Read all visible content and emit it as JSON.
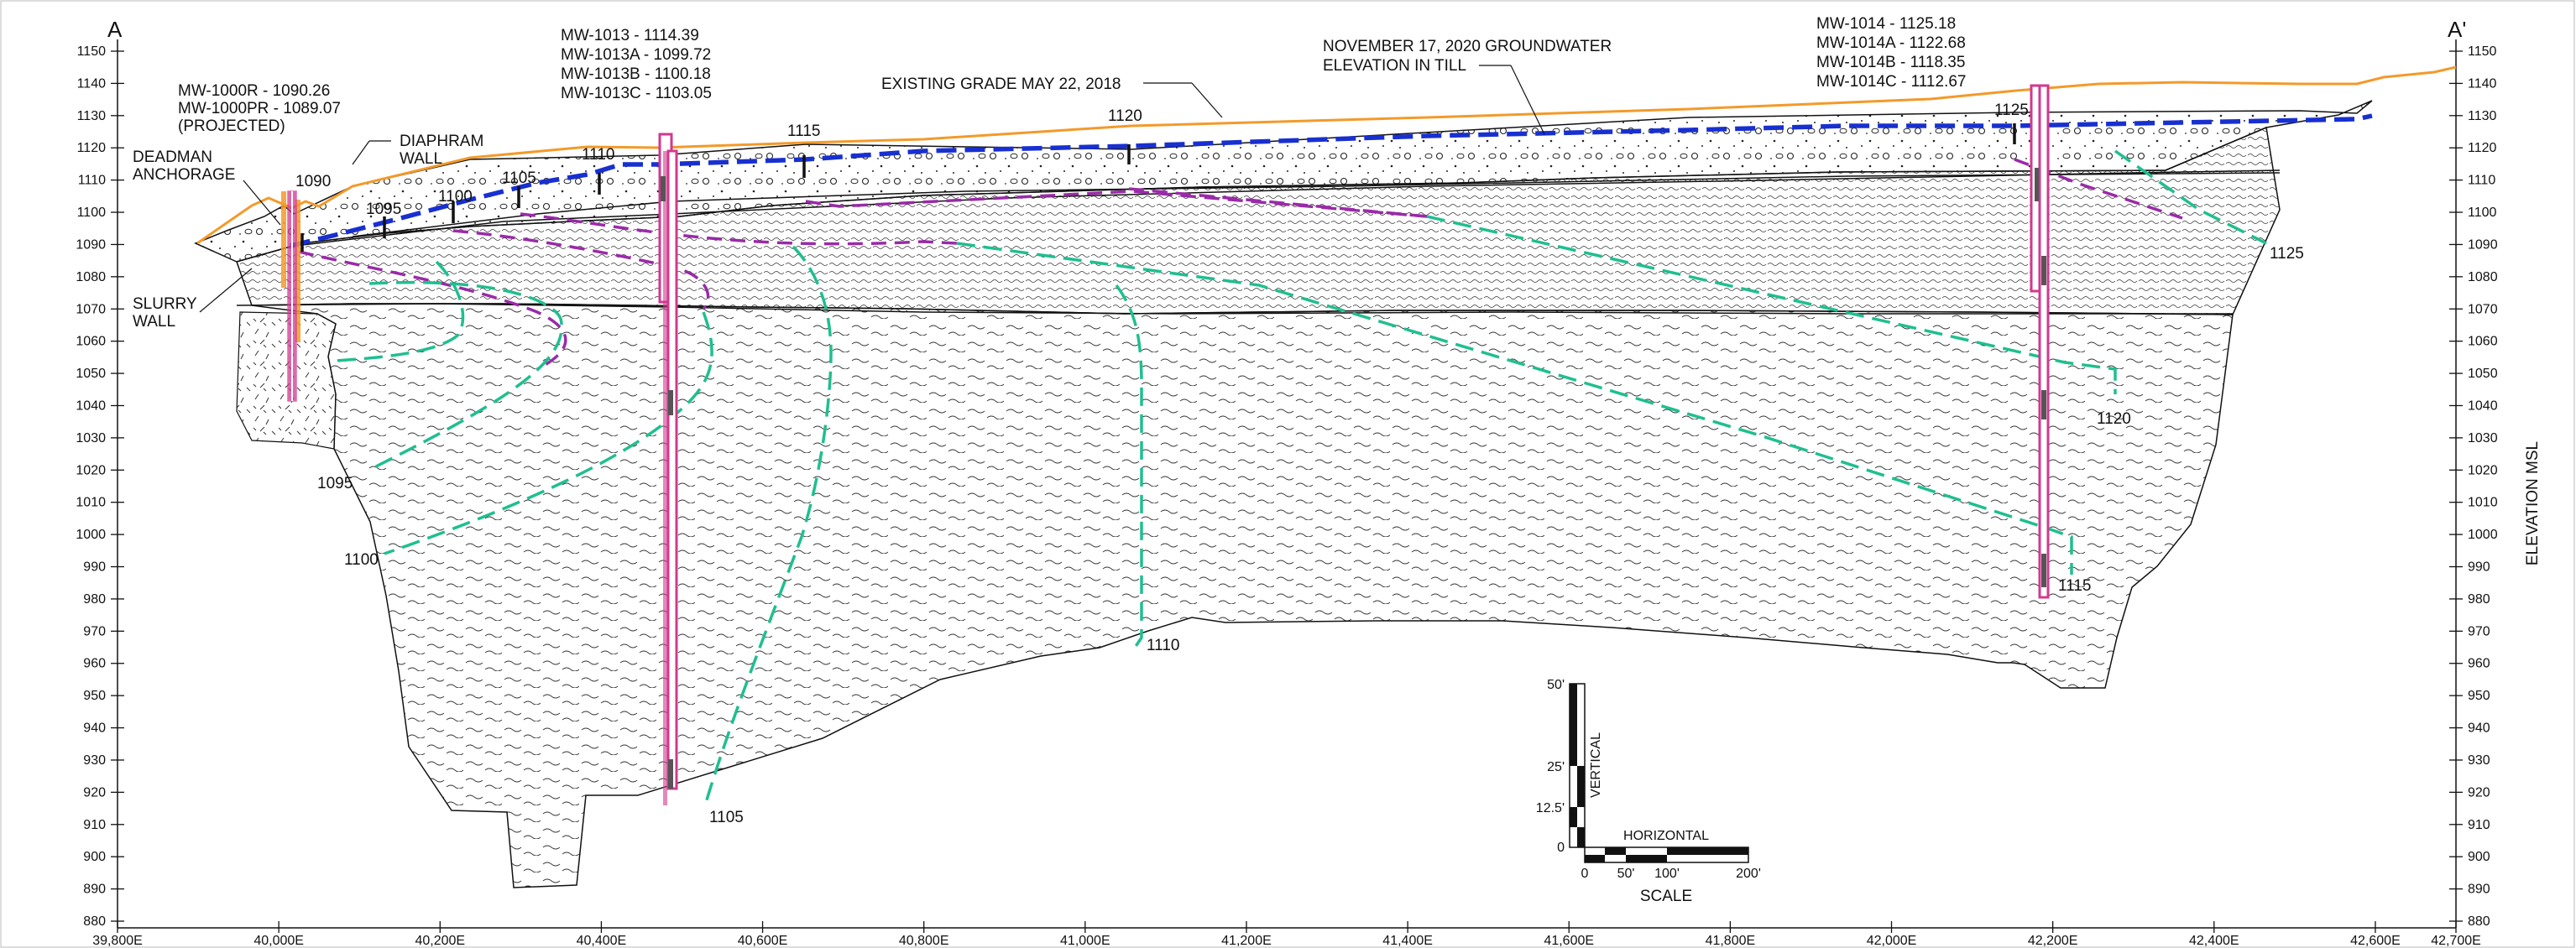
{
  "section": {
    "start_label": "A",
    "end_label": "A'",
    "y_axis_title": "ELEVATION MSL"
  },
  "axes": {
    "elev_ticks": [
      880,
      890,
      900,
      910,
      920,
      930,
      940,
      950,
      960,
      970,
      980,
      990,
      1000,
      1010,
      1020,
      1030,
      1040,
      1050,
      1060,
      1070,
      1080,
      1090,
      1100,
      1110,
      1120,
      1130,
      1140,
      1150
    ],
    "x_ticks": [
      "39,800E",
      "40,000E",
      "40,200E",
      "40,400E",
      "40,600E",
      "40,800E",
      "41,000E",
      "41,200E",
      "41,400E",
      "41,600E",
      "41,800E",
      "42,000E",
      "42,200E",
      "42,400E",
      "42,600E",
      "42,700E"
    ]
  },
  "annotations": {
    "mw1000": [
      "MW-1000R - 1090.26",
      "MW-1000PR - 1089.07",
      "(PROJECTED)"
    ],
    "mw1013": [
      "MW-1013  - 1114.39",
      "MW-1013A - 1099.72",
      "MW-1013B - 1100.18",
      "MW-1013C - 1103.05"
    ],
    "mw1014": [
      "MW-1014  - 1125.18",
      "MW-1014A - 1122.68",
      "MW-1014B - 1118.35",
      "MW-1014C - 1112.67"
    ],
    "deadman": [
      "DEADMAN",
      "ANCHORAGE"
    ],
    "diaphram": [
      "DIAPHRAM",
      "WALL"
    ],
    "slurry": [
      "SLURRY",
      "WALL"
    ],
    "existing_grade": "EXISTING GRADE MAY 22, 2018",
    "groundwater": [
      "NOVEMBER 17, 2020 GROUNDWATER",
      "ELEVATION IN TILL"
    ]
  },
  "contours": [
    "1090",
    "1095",
    "1100",
    "1105",
    "1110",
    "1115",
    "1120",
    "1125",
    "1095",
    "1100",
    "1105",
    "1110",
    "1115",
    "1120",
    "1125"
  ],
  "scale_bar": {
    "vertical_ticks": [
      "50'",
      "25'",
      "12.5'",
      "0"
    ],
    "vertical_label": "VERTICAL",
    "horizontal_label": "HORIZONTAL",
    "horizontal_ticks": [
      "0",
      "50'",
      "100'",
      "200'"
    ],
    "title": "SCALE"
  },
  "colors": {
    "ground_surface": "#f39a2a",
    "water_table": "#1830d0",
    "equipotential": "#1fbf8f",
    "flow_path": "#9a2aa8",
    "well": "#d2388f",
    "linework": "#111111"
  }
}
